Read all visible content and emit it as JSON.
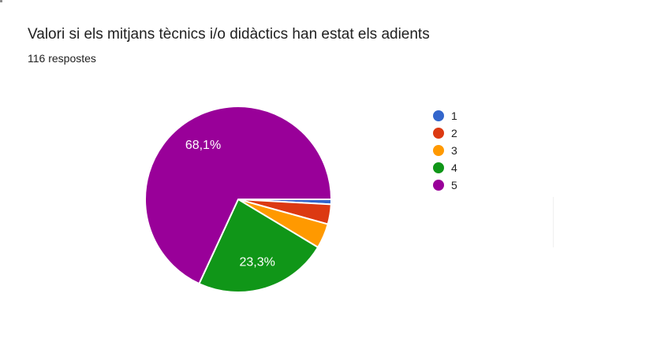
{
  "header": {
    "title": "Valori si els mitjans tècnics i/o didàctics han estat els adients",
    "responses_count": "116 respostes"
  },
  "chart_data": {
    "type": "pie",
    "title": "Valori si els mitjans tècnics i/o didàctics han estat els adients",
    "responses_total": 116,
    "start_angle_deg_from_east": 0,
    "direction": "clockwise",
    "legend_position": "right",
    "slices": [
      {
        "label": "1",
        "value": 1,
        "pct": 0.9,
        "color": "#3366CC",
        "pct_label": null
      },
      {
        "label": "2",
        "value": 4,
        "pct": 3.4,
        "color": "#DC3912",
        "pct_label": null
      },
      {
        "label": "3",
        "value": 5,
        "pct": 4.3,
        "color": "#FF9900",
        "pct_label": null
      },
      {
        "label": "4",
        "value": 27,
        "pct": 23.3,
        "color": "#109618",
        "pct_label": "23,3%"
      },
      {
        "label": "5",
        "value": 79,
        "pct": 68.1,
        "color": "#990099",
        "pct_label": "68,1%"
      }
    ]
  },
  "colors": {
    "text": "#212121",
    "slice_label_text": "#ffffff",
    "background": "#ffffff"
  }
}
